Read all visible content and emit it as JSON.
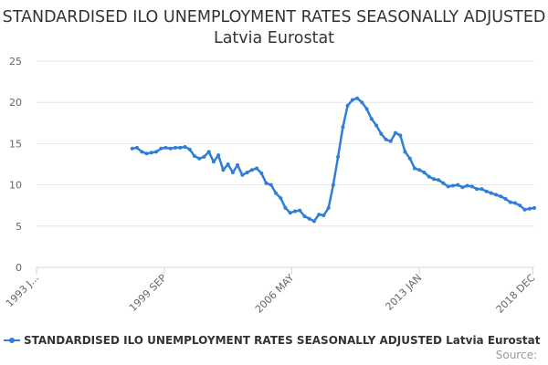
{
  "title": "STANDARDISED ILO UNEMPLOYMENT RATES SEASONALLY ADJUSTED Latvia Eurostat",
  "legend_label": "STANDARDISED ILO UNEMPLOYMENT RATES SEASONALLY ADJUSTED Latvia Eurostat",
  "source_label": "Source:",
  "colors": {
    "series": "#2f7ed8",
    "grid": "#e6e6e6",
    "axis": "#ccd6eb"
  },
  "chart_data": {
    "type": "line",
    "title": "STANDARDISED ILO UNEMPLOYMENT RATES SEASONALLY ADJUSTED Latvia Eurostat",
    "xlabel": "",
    "ylabel": "",
    "x_range": [
      1993.0,
      2019.0
    ],
    "ylim": [
      0,
      25
    ],
    "y_ticks": [
      0,
      5,
      10,
      15,
      20,
      25
    ],
    "x_ticks": [
      {
        "value": 1993.0,
        "label": "1993 J..."
      },
      {
        "value": 1999.67,
        "label": "1999 SEP"
      },
      {
        "value": 2006.33,
        "label": "2006 MAY"
      },
      {
        "value": 2013.0,
        "label": "2013 JAN"
      },
      {
        "value": 2018.92,
        "label": "2018 DEC"
      }
    ],
    "grid": true,
    "legend": "bottom",
    "series": [
      {
        "name": "STANDARDISED ILO UNEMPLOYMENT RATES SEASONALLY ADJUSTED Latvia Eurostat",
        "x": [
          1998.0,
          1998.25,
          1998.5,
          1998.75,
          1999.0,
          1999.25,
          1999.5,
          1999.75,
          2000.0,
          2000.25,
          2000.5,
          2000.75,
          2001.0,
          2001.25,
          2001.5,
          2001.75,
          2002.0,
          2002.25,
          2002.5,
          2002.75,
          2003.0,
          2003.25,
          2003.5,
          2003.75,
          2004.0,
          2004.25,
          2004.5,
          2004.75,
          2005.0,
          2005.25,
          2005.5,
          2005.75,
          2006.0,
          2006.25,
          2006.5,
          2006.75,
          2007.0,
          2007.25,
          2007.5,
          2007.75,
          2008.0,
          2008.25,
          2008.5,
          2008.75,
          2009.0,
          2009.25,
          2009.5,
          2009.75,
          2010.0,
          2010.25,
          2010.5,
          2010.75,
          2011.0,
          2011.25,
          2011.5,
          2011.75,
          2012.0,
          2012.25,
          2012.5,
          2012.75,
          2013.0,
          2013.25,
          2013.5,
          2013.75,
          2014.0,
          2014.25,
          2014.5,
          2014.75,
          2015.0,
          2015.25,
          2015.5,
          2015.75,
          2016.0,
          2016.25,
          2016.5,
          2016.75,
          2017.0,
          2017.25,
          2017.5,
          2017.75,
          2018.0,
          2018.25,
          2018.5,
          2018.75,
          2019.0
        ],
        "values": [
          14.4,
          14.5,
          14.0,
          13.8,
          13.9,
          14.0,
          14.4,
          14.5,
          14.4,
          14.5,
          14.5,
          14.6,
          14.3,
          13.5,
          13.2,
          13.4,
          14.0,
          12.8,
          13.6,
          11.8,
          12.5,
          11.5,
          12.4,
          11.2,
          11.5,
          11.8,
          12.0,
          11.4,
          10.2,
          10.0,
          9.0,
          8.4,
          7.2,
          6.6,
          6.8,
          6.9,
          6.2,
          5.9,
          5.6,
          6.4,
          6.3,
          7.2,
          10.0,
          13.4,
          17.0,
          19.6,
          20.3,
          20.5,
          20.0,
          19.2,
          18.0,
          17.2,
          16.2,
          15.5,
          15.3,
          16.3,
          16.0,
          14.0,
          13.2,
          12.0,
          11.8,
          11.5,
          11.0,
          10.7,
          10.6,
          10.2,
          9.8,
          9.9,
          10.0,
          9.7,
          9.9,
          9.8,
          9.5,
          9.5,
          9.2,
          9.0,
          8.8,
          8.6,
          8.3,
          7.9,
          7.8,
          7.5,
          7.0,
          7.1,
          7.2
        ]
      }
    ]
  }
}
